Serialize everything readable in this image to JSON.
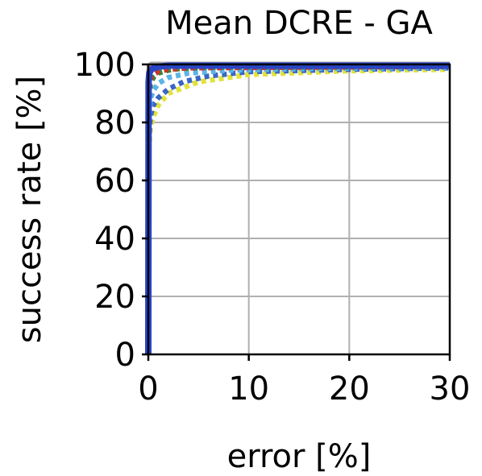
{
  "chart_data": {
    "type": "line",
    "title": "Mean DCRE - GA",
    "xlabel": "error [%]",
    "ylabel": "success rate [%]",
    "xlim": [
      0,
      30
    ],
    "ylim": [
      0,
      100
    ],
    "xticks": [
      0,
      10,
      20,
      30
    ],
    "yticks": [
      0,
      20,
      40,
      60,
      80,
      100
    ],
    "grid": true,
    "legend": "none",
    "series": [
      {
        "color": "#a8a8a8",
        "style": "solid",
        "x": [
          0,
          0.05,
          0.1,
          0.3,
          1.0,
          30
        ],
        "y": [
          0,
          97,
          99,
          100,
          100,
          100
        ]
      },
      {
        "color": "#e2e23a",
        "style": "dotted",
        "x": [
          0,
          0.05,
          0.2,
          0.5,
          1.0,
          2.0,
          5.0,
          10.0,
          20.0,
          30.0
        ],
        "y": [
          0,
          70,
          78,
          82,
          86,
          90,
          94,
          96.5,
          97.8,
          98.3
        ]
      },
      {
        "color": "#3a66c4",
        "style": "dotted",
        "x": [
          0,
          0.05,
          0.2,
          0.5,
          1.0,
          2.0,
          3.5,
          6.0,
          10.0,
          20.0,
          30.0
        ],
        "y": [
          0,
          74,
          82,
          86,
          88.5,
          91.5,
          94,
          96,
          97.5,
          98.3,
          98.8
        ]
      },
      {
        "color": "#5cb3e6",
        "style": "dotted",
        "x": [
          0,
          0.05,
          0.2,
          0.5,
          1.0,
          2.0,
          4.0,
          8.0,
          15.0,
          30.0
        ],
        "y": [
          0,
          80,
          88,
          91,
          93.5,
          95.5,
          97,
          98,
          98.5,
          99
        ]
      },
      {
        "color": "#2e8b3e",
        "style": "dotted",
        "x": [
          0,
          0.05,
          0.2,
          0.5,
          1.0,
          2.0,
          3.0,
          6.0,
          30.0
        ],
        "y": [
          0,
          88,
          93,
          95.5,
          97,
          98,
          98.5,
          99,
          99.3
        ]
      },
      {
        "color": "#c0392b",
        "style": "dotted",
        "x": [
          0,
          0.05,
          0.2,
          0.5,
          1.0,
          2.0,
          4.0,
          30.0
        ],
        "y": [
          0,
          90,
          95,
          96.5,
          97.5,
          98.3,
          98.8,
          99.3
        ]
      },
      {
        "color": "#2a45c7",
        "style": "solid",
        "x": [
          0,
          0.03,
          0.1,
          0.3,
          0.6,
          1.0,
          2.0,
          30.0
        ],
        "y": [
          0,
          94,
          97,
          98.3,
          98.8,
          99.2,
          99.6,
          99.6
        ]
      }
    ]
  }
}
